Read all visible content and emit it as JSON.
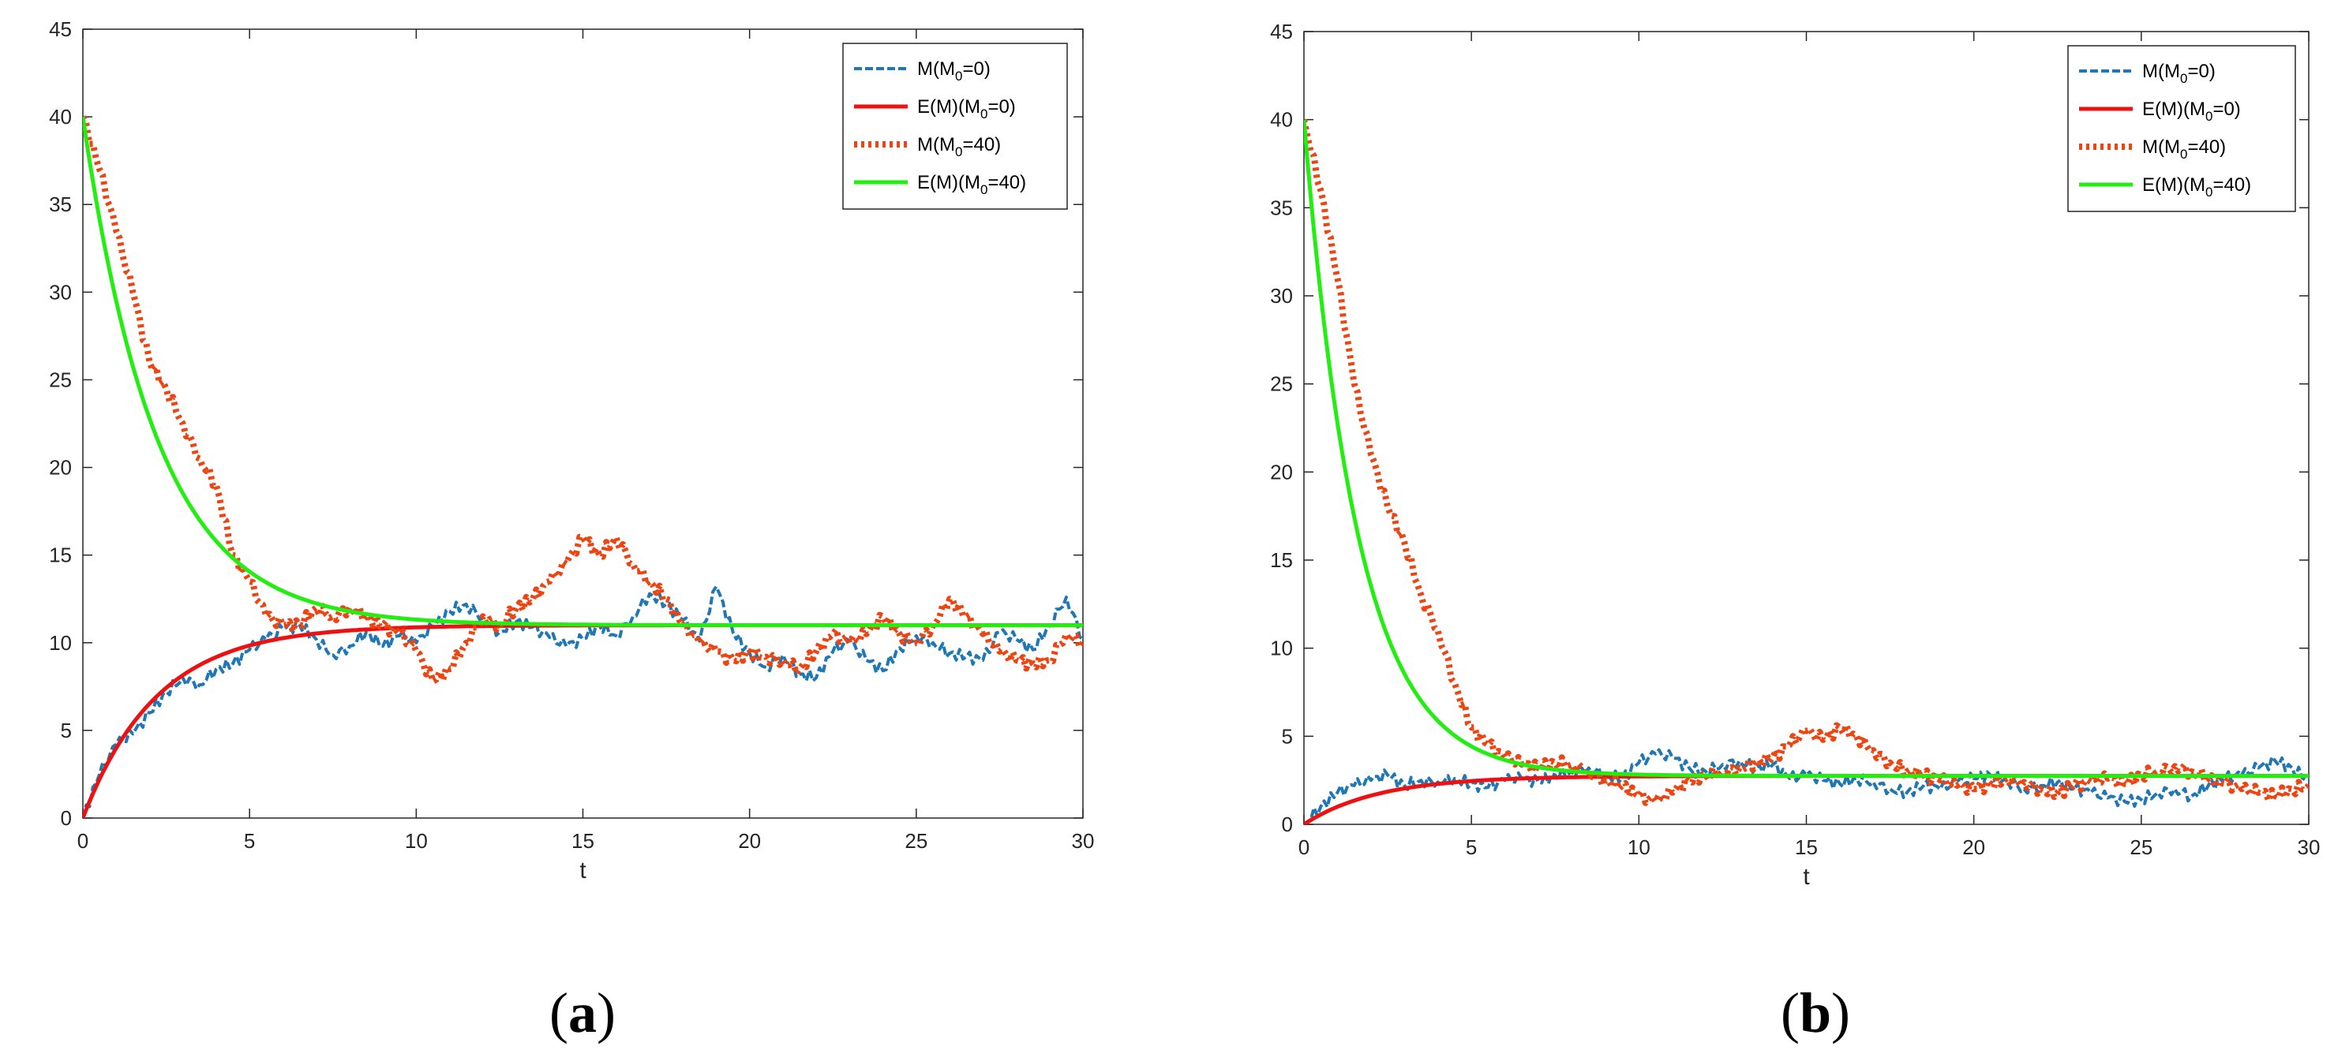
{
  "colors": {
    "blue": "#1f77b4",
    "red": "#ee1111",
    "orange": "#ee4411",
    "green": "#22ee11",
    "axis": "#262626"
  },
  "chart_data": [
    {
      "type": "line",
      "panel_label": {
        "open": "(",
        "letter": "a",
        "close": ")"
      },
      "xlabel": "t",
      "ylabel": "",
      "xlim": [
        0,
        30
      ],
      "ylim": [
        0,
        45
      ],
      "xticks": [
        "0",
        "5",
        "10",
        "15",
        "20",
        "25",
        "30"
      ],
      "yticks": [
        "0",
        "5",
        "10",
        "15",
        "20",
        "25",
        "30",
        "35",
        "40",
        "45"
      ],
      "legend_position": "top-right",
      "legend": [
        {
          "prefix": "M(M",
          "sub": "0",
          "suffix": "=0)",
          "style": "dashed",
          "color": "#1f77b4"
        },
        {
          "prefix": "E(M)(M",
          "sub": "0",
          "suffix": "=0)",
          "style": "solid",
          "color": "#ee1111"
        },
        {
          "prefix": "M(M",
          "sub": "0",
          "suffix": "=40)",
          "style": "dotted",
          "color": "#ee4411"
        },
        {
          "prefix": "E(M)(M",
          "sub": "0",
          "suffix": "=40)",
          "style": "solid",
          "color": "#22ee11"
        }
      ],
      "series": [
        {
          "name": "M(M0=0)",
          "style": "dashed",
          "color": "#1f77b4",
          "x": [
            0,
            0.5,
            1,
            1.5,
            2,
            2.5,
            3,
            3.5,
            4,
            4.5,
            5,
            5.5,
            6,
            6.5,
            7,
            7.5,
            8,
            8.5,
            9,
            9.5,
            10,
            10.5,
            11,
            11.5,
            12,
            12.5,
            13,
            13.5,
            14,
            14.5,
            15,
            15.5,
            16,
            16.5,
            17,
            17.5,
            18,
            18.5,
            19,
            19.5,
            20,
            20.5,
            21,
            21.5,
            22,
            22.5,
            23,
            23.5,
            24,
            24.5,
            25,
            25.5,
            26,
            26.5,
            27,
            27.5,
            28,
            28.5,
            29,
            29.5,
            30
          ],
          "y": [
            0,
            2.5,
            4.2,
            4.8,
            6.0,
            7.2,
            8.0,
            7.6,
            8.5,
            8.8,
            9.6,
            10.2,
            10.8,
            11.0,
            10.2,
            9.3,
            9.8,
            10.6,
            9.8,
            10.4,
            10.0,
            10.9,
            11.8,
            12.2,
            11.4,
            10.6,
            11.2,
            10.9,
            10.3,
            9.8,
            10.2,
            11.0,
            10.4,
            11.5,
            12.8,
            12.2,
            11.3,
            10.1,
            13.2,
            10.6,
            9.4,
            8.6,
            9.3,
            8.2,
            8.0,
            9.5,
            10.1,
            9.0,
            8.4,
            9.7,
            10.4,
            10.0,
            9.4,
            9.2,
            9.0,
            10.6,
            10.2,
            9.6,
            11.0,
            12.6,
            10.2
          ]
        },
        {
          "name": "E(M)(M0=0)",
          "style": "solid",
          "color": "#ee1111",
          "fn": "11*(1-exp(-0.45*t))"
        },
        {
          "name": "M(M0=40)",
          "style": "dotted",
          "color": "#ee4411",
          "x": [
            0,
            0.5,
            1,
            1.5,
            2,
            2.5,
            3,
            3.5,
            4,
            4.5,
            5,
            5.5,
            6,
            6.5,
            7,
            7.5,
            8,
            8.5,
            9,
            9.5,
            10,
            10.5,
            11,
            11.5,
            12,
            12.5,
            13,
            13.5,
            14,
            14.5,
            15,
            15.5,
            16,
            16.5,
            17,
            17.5,
            18,
            18.5,
            19,
            19.5,
            20,
            20.5,
            21,
            21.5,
            22,
            22.5,
            23,
            23.5,
            24,
            24.5,
            25,
            25.5,
            26,
            26.5,
            27,
            27.5,
            28,
            28.5,
            29,
            29.5,
            30
          ],
          "y": [
            40,
            37,
            33.5,
            30,
            26,
            24.5,
            22.5,
            20.5,
            19,
            15,
            13.5,
            11.5,
            11,
            11,
            12,
            11.5,
            12,
            11.5,
            11,
            10.5,
            9.5,
            7.8,
            8.5,
            10,
            11.5,
            11,
            12,
            12.5,
            13.5,
            14.5,
            16,
            15,
            16,
            14.5,
            13.5,
            12.5,
            11,
            10,
            9.5,
            9,
            9.5,
            9.2,
            9,
            8.5,
            9.5,
            10.5,
            10,
            10.5,
            11.5,
            10.5,
            10,
            11,
            12.5,
            11.5,
            10.5,
            9.5,
            9,
            8.8,
            9,
            10.5,
            10
          ]
        },
        {
          "name": "E(M)(M0=40)",
          "style": "solid",
          "color": "#22ee11",
          "fn": "11+29*exp(-0.45*t)"
        }
      ]
    },
    {
      "type": "line",
      "panel_label": {
        "open": "(",
        "letter": "b",
        "close": ")"
      },
      "xlabel": "t",
      "ylabel": "",
      "xlim": [
        0,
        30
      ],
      "ylim": [
        0,
        45
      ],
      "xticks": [
        "0",
        "5",
        "10",
        "15",
        "20",
        "25",
        "30"
      ],
      "yticks": [
        "0",
        "5",
        "10",
        "15",
        "20",
        "25",
        "30",
        "35",
        "40",
        "45"
      ],
      "legend_position": "top-right",
      "legend": [
        {
          "prefix": "M(M",
          "sub": "0",
          "suffix": "=0)",
          "style": "dashed",
          "color": "#1f77b4"
        },
        {
          "prefix": "E(M)(M",
          "sub": "0",
          "suffix": "=0)",
          "style": "solid",
          "color": "#ee1111"
        },
        {
          "prefix": "M(M",
          "sub": "0",
          "suffix": "=40)",
          "style": "dotted",
          "color": "#ee4411"
        },
        {
          "prefix": "E(M)(M",
          "sub": "0",
          "suffix": "=40)",
          "style": "solid",
          "color": "#22ee11"
        }
      ],
      "series": [
        {
          "name": "M(M0=0)",
          "style": "dashed",
          "color": "#1f77b4",
          "x": [
            0,
            0.5,
            1,
            1.5,
            2,
            2.5,
            3,
            3.5,
            4,
            4.5,
            5,
            5.5,
            6,
            6.5,
            7,
            7.5,
            8,
            8.5,
            9,
            9.5,
            10,
            10.5,
            11,
            11.5,
            12,
            12.5,
            13,
            13.5,
            14,
            14.5,
            15,
            15.5,
            16,
            16.5,
            17,
            17.5,
            18,
            18.5,
            19,
            19.5,
            20,
            20.5,
            21,
            21.5,
            22,
            22.5,
            23,
            23.5,
            24,
            24.5,
            25,
            25.5,
            26,
            26.5,
            27,
            27.5,
            28,
            28.5,
            29,
            29.5,
            30
          ],
          "y": [
            0,
            1.0,
            1.8,
            2.2,
            2.5,
            2.8,
            2.2,
            2.5,
            2.4,
            2.6,
            2.3,
            2.1,
            2.5,
            2.6,
            2.4,
            2.8,
            3.0,
            3.2,
            2.8,
            2.6,
            3.5,
            4.0,
            3.8,
            3.2,
            3.0,
            3.4,
            3.6,
            3.2,
            3.4,
            2.6,
            2.8,
            2.5,
            2.3,
            2.6,
            2.4,
            2.0,
            1.8,
            2.2,
            2.0,
            2.4,
            2.6,
            2.8,
            2.5,
            2.0,
            2.2,
            2.4,
            2.0,
            1.8,
            1.5,
            1.3,
            1.4,
            1.8,
            2.0,
            1.6,
            2.2,
            2.6,
            2.8,
            3.2,
            3.6,
            3.2,
            2.5
          ]
        },
        {
          "name": "E(M)(M0=0)",
          "style": "solid",
          "color": "#ee1111",
          "fn": "2.75*(1-exp(-0.45*t))"
        },
        {
          "name": "M(M0=40)",
          "style": "dotted",
          "color": "#ee4411",
          "x": [
            0,
            0.5,
            1,
            1.5,
            2,
            2.5,
            3,
            3.5,
            4,
            4.5,
            5,
            5.5,
            6,
            6.5,
            7,
            7.5,
            8,
            8.5,
            9,
            9.5,
            10,
            10.5,
            11,
            11.5,
            12,
            12.5,
            13,
            13.5,
            14,
            14.5,
            15,
            15.5,
            16,
            16.5,
            17,
            17.5,
            18,
            18.5,
            19,
            19.5,
            20,
            20.5,
            21,
            21.5,
            22,
            22.5,
            23,
            23.5,
            24,
            24.5,
            25,
            25.5,
            26,
            26.5,
            27,
            27.5,
            28,
            28.5,
            29,
            29.5,
            30
          ],
          "y": [
            40,
            36,
            31,
            25,
            21,
            18,
            16,
            13,
            11,
            8,
            5.5,
            4.5,
            3.8,
            3.4,
            3.2,
            3.5,
            3.4,
            3.0,
            2.5,
            2.2,
            1.6,
            1.3,
            1.8,
            2.5,
            2.8,
            3.0,
            3.2,
            3.5,
            3.8,
            4.5,
            5.3,
            4.8,
            5.5,
            5.0,
            4.2,
            3.5,
            3.0,
            2.8,
            2.5,
            2.2,
            2.0,
            2.3,
            2.6,
            2.4,
            2.0,
            1.8,
            2.2,
            2.4,
            2.6,
            2.3,
            2.8,
            3.0,
            3.3,
            3.0,
            2.6,
            2.3,
            2.0,
            1.8,
            1.6,
            2.0,
            2.2
          ]
        },
        {
          "name": "E(M)(M0=40)",
          "style": "solid",
          "color": "#22ee11",
          "fn": "2.75+37.25*exp(-0.62*t)"
        }
      ]
    }
  ]
}
